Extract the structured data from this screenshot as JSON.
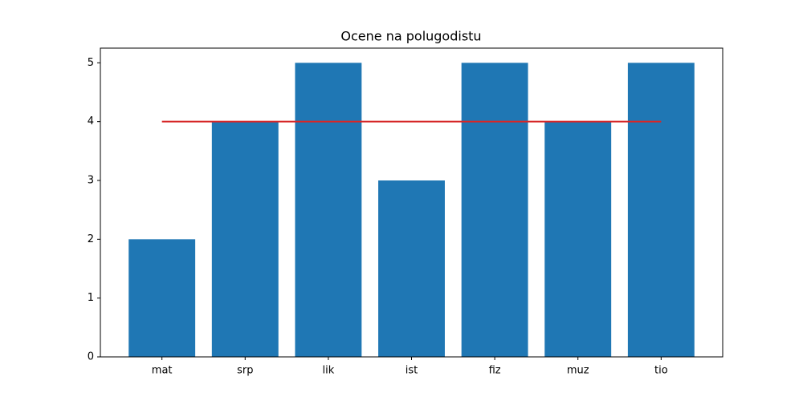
{
  "chart_data": {
    "type": "bar",
    "title": "Ocene na polugodistu",
    "categories": [
      "mat",
      "srp",
      "lik",
      "ist",
      "fiz",
      "muz",
      "tio"
    ],
    "series": [
      {
        "type": "bar",
        "color": "#1f77b4",
        "values": [
          2,
          4,
          5,
          3,
          5,
          4,
          5
        ]
      },
      {
        "type": "line",
        "color": "#d62728",
        "values": [
          4,
          4,
          4,
          4,
          4,
          4,
          4
        ]
      }
    ],
    "xlim": [
      -0.74,
      6.74
    ],
    "ylim": [
      0,
      5.25
    ],
    "yticks": [
      0,
      1,
      2,
      3,
      4,
      5
    ]
  }
}
